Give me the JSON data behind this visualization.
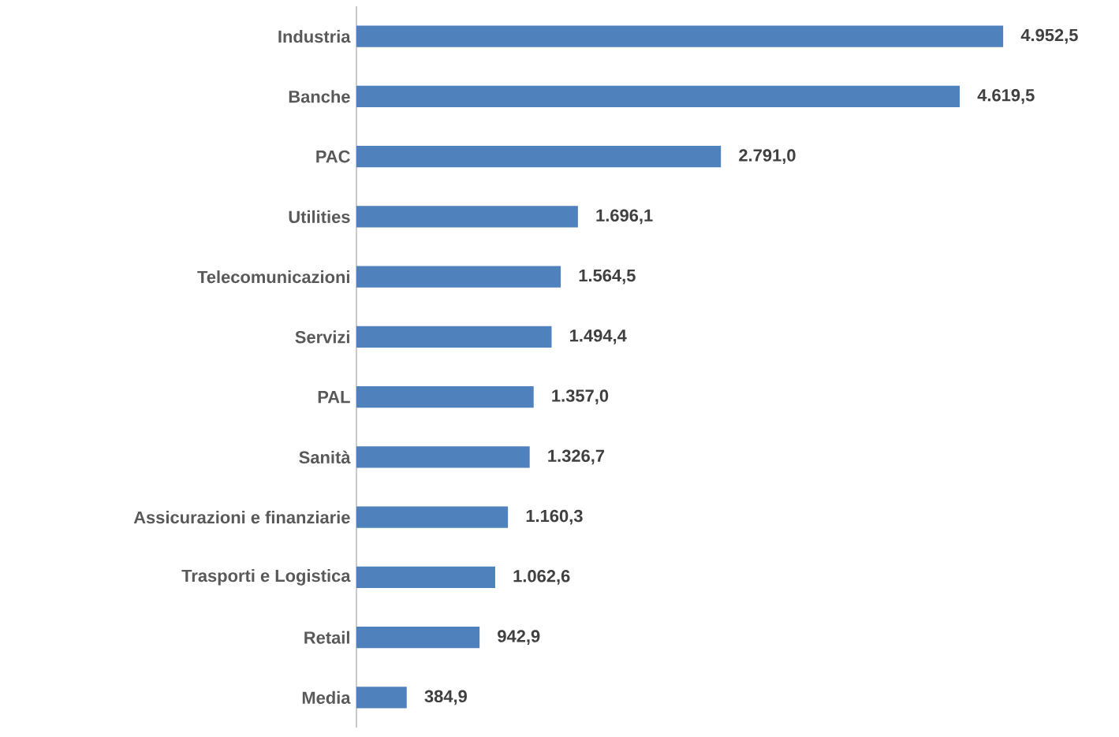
{
  "chart_data": {
    "type": "bar",
    "orientation": "horizontal",
    "color": "#4f81bd",
    "categories": [
      "Industria",
      "Banche",
      "PAC",
      "Utilities",
      "Telecomunicazioni",
      "Servizi",
      "PAL",
      "Sanità",
      "Assicurazioni e finanziarie",
      "Trasporti e Logistica",
      "Retail",
      "Media"
    ],
    "values": [
      4952.5,
      4619.5,
      2791.0,
      1696.1,
      1564.5,
      1494.4,
      1357.0,
      1326.7,
      1160.3,
      1062.6,
      942.9,
      384.9
    ],
    "value_labels": [
      "4.952,5",
      "4.619,5",
      "2.791,0",
      "1.696,1",
      "1.564,5",
      "1.494,4",
      "1.357,0",
      "1.326,7",
      "1.160,3",
      "1.062,6",
      "942,9",
      "384,9"
    ]
  }
}
